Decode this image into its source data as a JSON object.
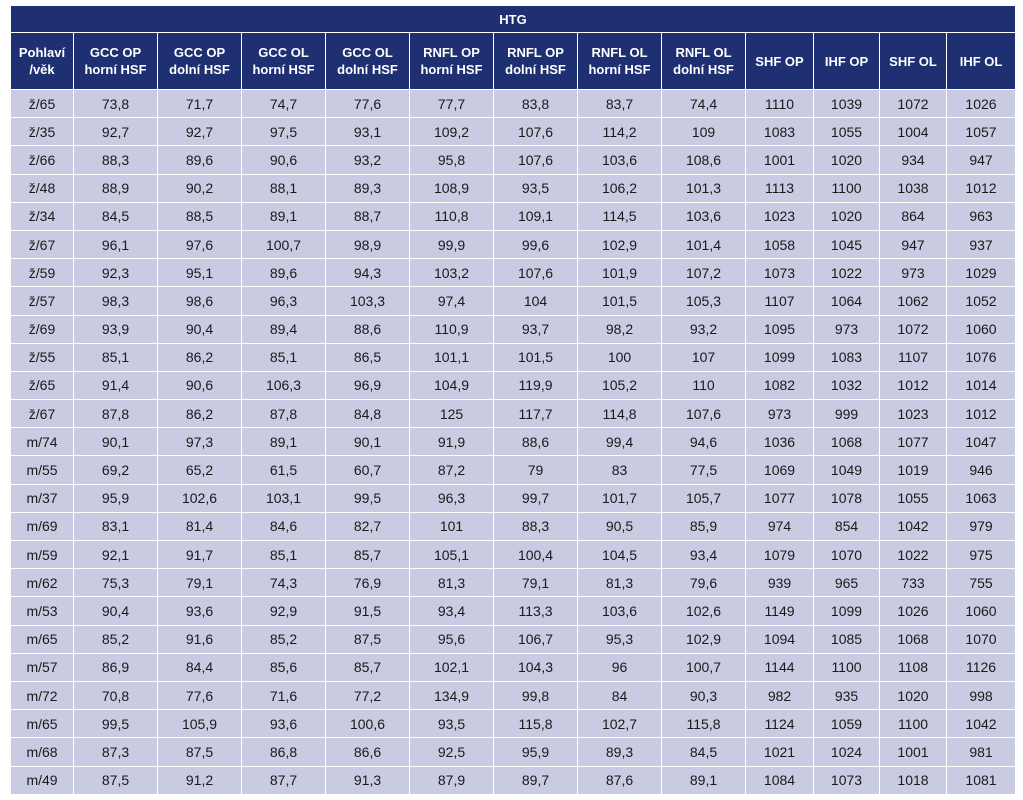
{
  "table": {
    "title": "HTG",
    "columns": [
      [
        "Pohlaví",
        "/věk"
      ],
      [
        "GCC OP",
        "horní HSF"
      ],
      [
        "GCC OP",
        "dolní HSF"
      ],
      [
        "GCC OL",
        "horní HSF"
      ],
      [
        "GCC OL",
        "dolní HSF"
      ],
      [
        "RNFL OP",
        "horní HSF"
      ],
      [
        "RNFL OP",
        "dolní HSF"
      ],
      [
        "RNFL OL",
        "horní HSF"
      ],
      [
        "RNFL OL",
        "dolní HSF"
      ],
      [
        "SHF OP"
      ],
      [
        "IHF OP"
      ],
      [
        "SHF OL"
      ],
      [
        "IHF OL"
      ]
    ],
    "rows": [
      [
        "ž/65",
        "73,8",
        "71,7",
        "74,7",
        "77,6",
        "77,7",
        "83,8",
        "83,7",
        "74,4",
        "1110",
        "1039",
        "1072",
        "1026"
      ],
      [
        "ž/35",
        "92,7",
        "92,7",
        "97,5",
        "93,1",
        "109,2",
        "107,6",
        "114,2",
        "109",
        "1083",
        "1055",
        "1004",
        "1057"
      ],
      [
        "ž/66",
        "88,3",
        "89,6",
        "90,6",
        "93,2",
        "95,8",
        "107,6",
        "103,6",
        "108,6",
        "1001",
        "1020",
        "934",
        "947"
      ],
      [
        "ž/48",
        "88,9",
        "90,2",
        "88,1",
        "89,3",
        "108,9",
        "93,5",
        "106,2",
        "101,3",
        "1113",
        "1100",
        "1038",
        "1012"
      ],
      [
        "ž/34",
        "84,5",
        "88,5",
        "89,1",
        "88,7",
        "110,8",
        "109,1",
        "114,5",
        "103,6",
        "1023",
        "1020",
        "864",
        "963"
      ],
      [
        "ž/67",
        "96,1",
        "97,6",
        "100,7",
        "98,9",
        "99,9",
        "99,6",
        "102,9",
        "101,4",
        "1058",
        "1045",
        "947",
        "937"
      ],
      [
        "ž/59",
        "92,3",
        "95,1",
        "89,6",
        "94,3",
        "103,2",
        "107,6",
        "101,9",
        "107,2",
        "1073",
        "1022",
        "973",
        "1029"
      ],
      [
        "ž/57",
        "98,3",
        "98,6",
        "96,3",
        "103,3",
        "97,4",
        "104",
        "101,5",
        "105,3",
        "1107",
        "1064",
        "1062",
        "1052"
      ],
      [
        "ž/69",
        "93,9",
        "90,4",
        "89,4",
        "88,6",
        "110,9",
        "93,7",
        "98,2",
        "93,2",
        "1095",
        "973",
        "1072",
        "1060"
      ],
      [
        "ž/55",
        "85,1",
        "86,2",
        "85,1",
        "86,5",
        "101,1",
        "101,5",
        "100",
        "107",
        "1099",
        "1083",
        "1107",
        "1076"
      ],
      [
        "ž/65",
        "91,4",
        "90,6",
        "106,3",
        "96,9",
        "104,9",
        "119,9",
        "105,2",
        "110",
        "1082",
        "1032",
        "1012",
        "1014"
      ],
      [
        "ž/67",
        "87,8",
        "86,2",
        "87,8",
        "84,8",
        "125",
        "117,7",
        "114,8",
        "107,6",
        "973",
        "999",
        "1023",
        "1012"
      ],
      [
        "m/74",
        "90,1",
        "97,3",
        "89,1",
        "90,1",
        "91,9",
        "88,6",
        "99,4",
        "94,6",
        "1036",
        "1068",
        "1077",
        "1047"
      ],
      [
        "m/55",
        "69,2",
        "65,2",
        "61,5",
        "60,7",
        "87,2",
        "79",
        "83",
        "77,5",
        "1069",
        "1049",
        "1019",
        "946"
      ],
      [
        "m/37",
        "95,9",
        "102,6",
        "103,1",
        "99,5",
        "96,3",
        "99,7",
        "101,7",
        "105,7",
        "1077",
        "1078",
        "1055",
        "1063"
      ],
      [
        "m/69",
        "83,1",
        "81,4",
        "84,6",
        "82,7",
        "101",
        "88,3",
        "90,5",
        "85,9",
        "974",
        "854",
        "1042",
        "979"
      ],
      [
        "m/59",
        "92,1",
        "91,7",
        "85,1",
        "85,7",
        "105,1",
        "100,4",
        "104,5",
        "93,4",
        "1079",
        "1070",
        "1022",
        "975"
      ],
      [
        "m/62",
        "75,3",
        "79,1",
        "74,3",
        "76,9",
        "81,3",
        "79,1",
        "81,3",
        "79,6",
        "939",
        "965",
        "733",
        "755"
      ],
      [
        "m/53",
        "90,4",
        "93,6",
        "92,9",
        "91,5",
        "93,4",
        "113,3",
        "103,6",
        "102,6",
        "1149",
        "1099",
        "1026",
        "1060"
      ],
      [
        "m/65",
        "85,2",
        "91,6",
        "85,2",
        "87,5",
        "95,6",
        "106,7",
        "95,3",
        "102,9",
        "1094",
        "1085",
        "1068",
        "1070"
      ],
      [
        "m/57",
        "86,9",
        "84,4",
        "85,6",
        "85,7",
        "102,1",
        "104,3",
        "96",
        "100,7",
        "1144",
        "1100",
        "1108",
        "1126"
      ],
      [
        "m/72",
        "70,8",
        "77,6",
        "71,6",
        "77,2",
        "134,9",
        "99,8",
        "84",
        "90,3",
        "982",
        "935",
        "1020",
        "998"
      ],
      [
        "m/65",
        "99,5",
        "105,9",
        "93,6",
        "100,6",
        "93,5",
        "115,8",
        "102,7",
        "115,8",
        "1124",
        "1059",
        "1100",
        "1042"
      ],
      [
        "m/68",
        "87,3",
        "87,5",
        "86,8",
        "86,6",
        "92,5",
        "95,9",
        "89,3",
        "84,5",
        "1021",
        "1024",
        "1001",
        "981"
      ],
      [
        "m/49",
        "87,5",
        "91,2",
        "87,7",
        "91,3",
        "87,9",
        "89,7",
        "87,6",
        "89,1",
        "1084",
        "1073",
        "1018",
        "1081"
      ]
    ]
  }
}
